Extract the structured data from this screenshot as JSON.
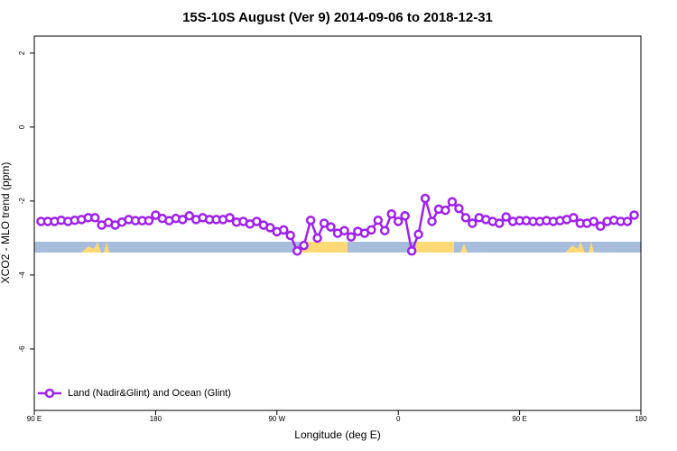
{
  "chart_data": {
    "type": "line",
    "title": "15S-10S August (Ver 9)   2014-09-06 to 2018-12-31",
    "x_label": "Longitude (deg E)",
    "y_label": "XCO2 - MLO trend (ppm)",
    "xlim": [
      90,
      540
    ],
    "ylim": [
      -7.66,
      2.46
    ],
    "xticks": [
      {
        "value": 90,
        "label": "90 E"
      },
      {
        "value": 180,
        "label": "180"
      },
      {
        "value": 270,
        "label": "90 W"
      },
      {
        "value": 360,
        "label": "0"
      },
      {
        "value": 450,
        "label": "90 E"
      },
      {
        "value": 540,
        "label": "180"
      }
    ],
    "yticks": [
      -6,
      -4,
      -2,
      0,
      2
    ],
    "legend": "bottom-left",
    "x": [
      95,
      100,
      105,
      110,
      115,
      120,
      125,
      130,
      135,
      140,
      145,
      150,
      155,
      160,
      165,
      170,
      175,
      180,
      185,
      190,
      195,
      200,
      205,
      210,
      215,
      220,
      225,
      230,
      235,
      240,
      245,
      250,
      255,
      260,
      265,
      270,
      275,
      280,
      285,
      290,
      295,
      300,
      305,
      310,
      315,
      320,
      325,
      330,
      335,
      340,
      345,
      350,
      355,
      360,
      365,
      370,
      375,
      380,
      385,
      390,
      395,
      400,
      405,
      410,
      415,
      420,
      425,
      430,
      435,
      440,
      445,
      450,
      455,
      460,
      465,
      470,
      475,
      480,
      485,
      490,
      495,
      500,
      505,
      510,
      515,
      520,
      525,
      530,
      535
    ],
    "series": [
      {
        "name": "Land (Nadir&Glint) and Ocean (Glint)",
        "color": "#a020f0",
        "values": [
          -2.55,
          -2.55,
          -2.55,
          -2.52,
          -2.55,
          -2.52,
          -2.5,
          -2.45,
          -2.45,
          -2.65,
          -2.58,
          -2.65,
          -2.57,
          -2.5,
          -2.53,
          -2.53,
          -2.53,
          -2.38,
          -2.47,
          -2.53,
          -2.47,
          -2.5,
          -2.4,
          -2.5,
          -2.45,
          -2.5,
          -2.5,
          -2.5,
          -2.45,
          -2.57,
          -2.55,
          -2.62,
          -2.55,
          -2.65,
          -2.72,
          -2.83,
          -2.78,
          -2.93,
          -3.35,
          -3.2,
          -2.52,
          -3.0,
          -2.6,
          -2.7,
          -2.87,
          -2.8,
          -2.97,
          -2.82,
          -2.87,
          -2.78,
          -2.52,
          -2.8,
          -2.35,
          -2.55,
          -2.4,
          -3.35,
          -2.9,
          -1.93,
          -2.55,
          -2.22,
          -2.25,
          -2.02,
          -2.2,
          -2.45,
          -2.6,
          -2.45,
          -2.5,
          -2.55,
          -2.6,
          -2.43,
          -2.55,
          -2.53,
          -2.53,
          -2.55,
          -2.55,
          -2.53,
          -2.55,
          -2.53,
          -2.5,
          -2.45,
          -2.6,
          -2.6,
          -2.55,
          -2.68,
          -2.55,
          -2.52,
          -2.55,
          -2.55,
          -2.38
        ]
      }
    ]
  }
}
